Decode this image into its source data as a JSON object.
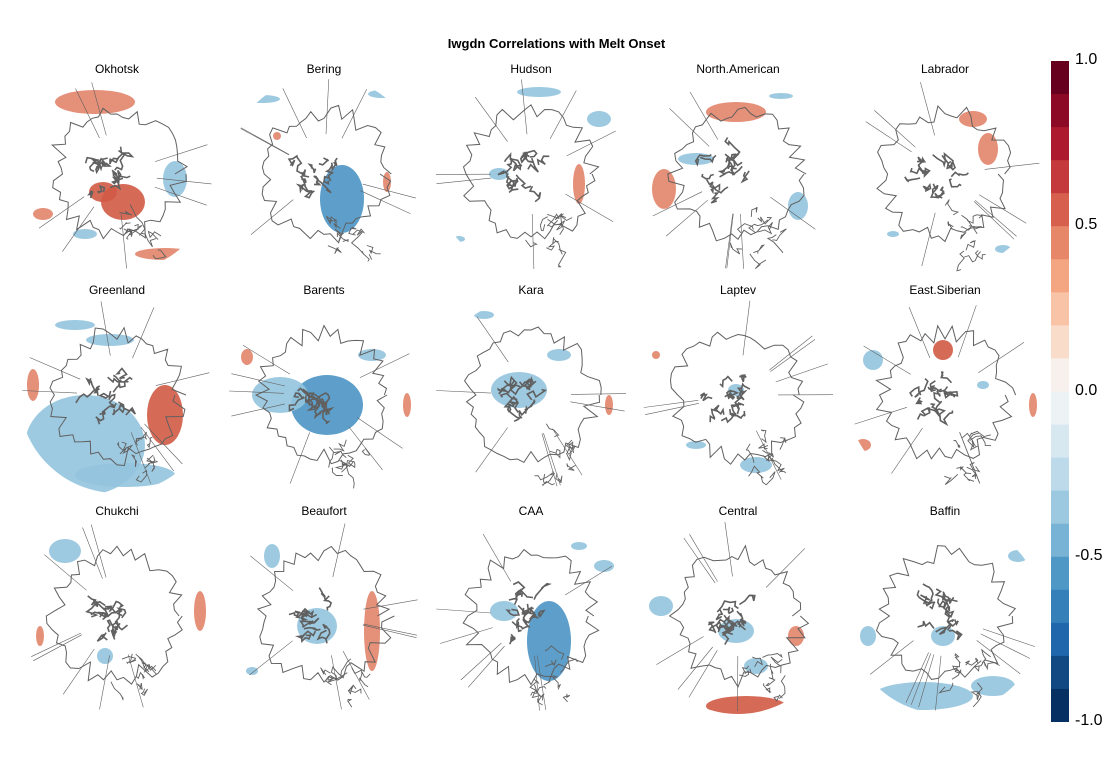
{
  "title": "Iwgdn Correlations with Melt Onset",
  "panels": [
    {
      "label": "Okhotsk"
    },
    {
      "label": "Bering"
    },
    {
      "label": "Hudson"
    },
    {
      "label": "North.American"
    },
    {
      "label": "Labrador"
    },
    {
      "label": "Greenland"
    },
    {
      "label": "Barents"
    },
    {
      "label": "Kara"
    },
    {
      "label": "Laptev"
    },
    {
      "label": "East.Siberian"
    },
    {
      "label": "Chukchi"
    },
    {
      "label": "Beaufort"
    },
    {
      "label": "CAA"
    },
    {
      "label": "Central"
    },
    {
      "label": "Baffin"
    }
  ],
  "colorbar": {
    "min": -1.0,
    "max": 1.0,
    "tick_labels": [
      "1.0",
      "0.5",
      "0.0",
      "-0.5",
      "-1.0"
    ],
    "colors": [
      "#67001f",
      "#8c0a26",
      "#ad1a2f",
      "#c4393b",
      "#d6604d",
      "#e7876a",
      "#f4a582",
      "#f8c3a6",
      "#fadccb",
      "#f7f0ec",
      "#edf2f5",
      "#d7e8f1",
      "#bcdaea",
      "#9dc9e0",
      "#78b3d5",
      "#4f98c6",
      "#3580b9",
      "#2066ac",
      "#124983",
      "#053061"
    ]
  },
  "map_colors": {
    "positive": "#e2846a",
    "positive_strong": "#d05a45",
    "negative": "#93c4de",
    "negative_strong": "#4b95c4",
    "coast": "#606060"
  }
}
